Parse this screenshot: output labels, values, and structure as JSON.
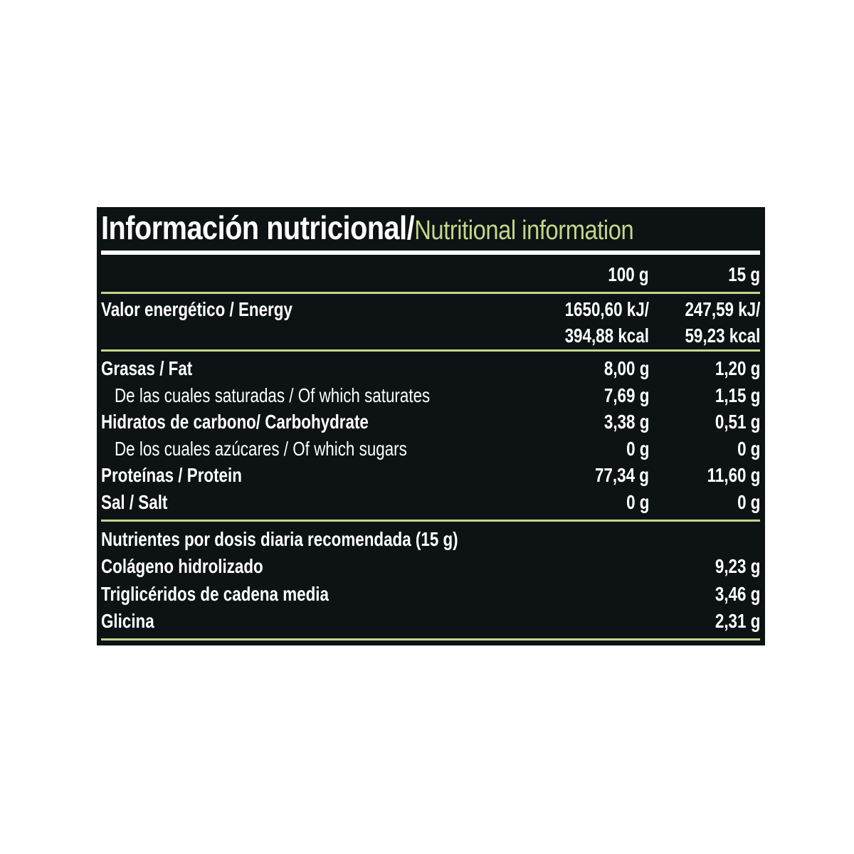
{
  "title": {
    "es": "Información nutricional/",
    "en": "Nutritional information"
  },
  "columns": [
    "100 g",
    "15 g"
  ],
  "energy": {
    "label": "Valor energético / Energy",
    "v100_kj": "1650,60 kJ/",
    "v100_kcal": "394,88 kcal",
    "v15_kj": "247,59 kJ/",
    "v15_kcal": "59,23 kcal"
  },
  "rows": [
    {
      "label": "Grasas / Fat",
      "sub": false,
      "v100": "8,00 g",
      "v15": "1,20 g"
    },
    {
      "label": "De las cuales saturadas / Of which saturates",
      "sub": true,
      "v100": "7,69 g",
      "v15": "1,15 g"
    },
    {
      "label": "Hidratos de carbono/ Carbohydrate",
      "sub": false,
      "v100": "3,38 g",
      "v15": "0,51 g"
    },
    {
      "label": "De los cuales azúcares / Of which sugars",
      "sub": true,
      "v100": "0 g",
      "v15": "0 g"
    },
    {
      "label": "Proteínas / Protein",
      "sub": false,
      "v100": "77,34 g",
      "v15": "11,60 g"
    },
    {
      "label": "Sal / Salt",
      "sub": false,
      "v100": "0 g",
      "v15": "0 g"
    }
  ],
  "daily": {
    "heading": "Nutrientes por dosis diaria recomendada (15 g)",
    "items": [
      {
        "label": "Colágeno hidrolizado",
        "value": "9,23 g"
      },
      {
        "label": "Triglicéridos de cadena media",
        "value": "3,46 g"
      },
      {
        "label": "Glicina",
        "value": "2,31 g"
      }
    ]
  },
  "colors": {
    "background": "#0d1214",
    "accent": "#c5d68a",
    "text": "#ffffff"
  }
}
